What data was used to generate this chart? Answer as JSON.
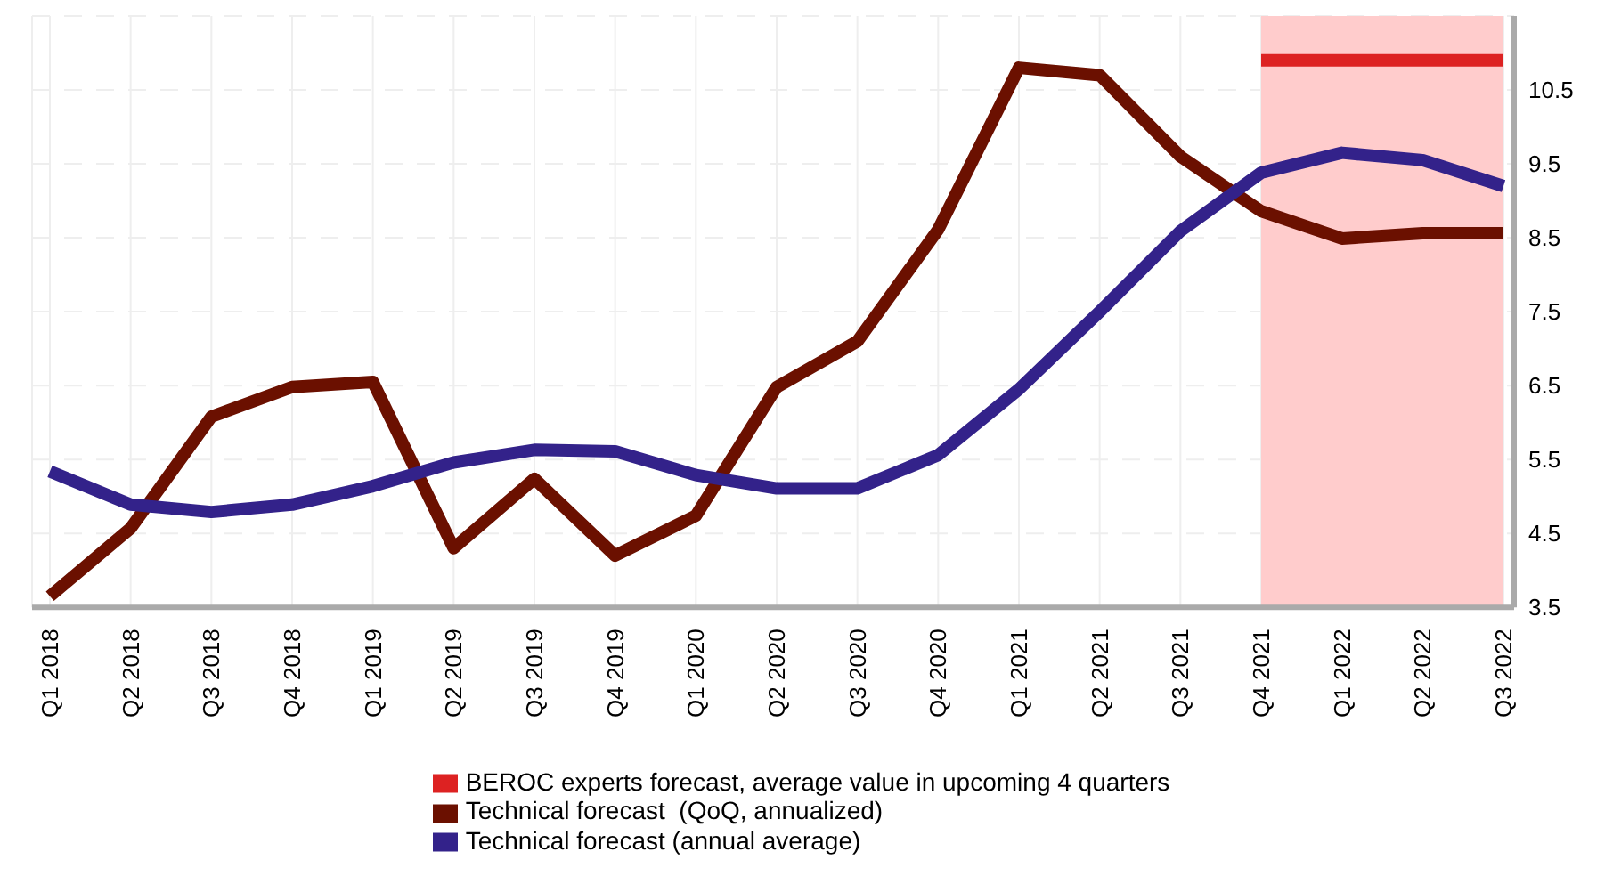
{
  "chart_data": {
    "type": "line",
    "categories": [
      "Q1 2018",
      "Q2 2018",
      "Q3 2018",
      "Q4 2018",
      "Q1 2019",
      "Q2 2019",
      "Q3 2019",
      "Q4 2019",
      "Q1 2020",
      "Q2 2020",
      "Q3 2020",
      "Q4 2020",
      "Q1 2021",
      "Q2 2021",
      "Q3 2021",
      "Q4 2021",
      "Q1 2022",
      "Q2 2022",
      "Q3 2022"
    ],
    "series": [
      {
        "name": "BEROC experts forecast, average value in upcoming 4 quarters",
        "color": "#dd2222",
        "values": [
          null,
          null,
          null,
          null,
          null,
          null,
          null,
          null,
          null,
          null,
          null,
          null,
          null,
          null,
          null,
          10.9,
          10.9,
          10.9,
          10.9
        ]
      },
      {
        "name": "Technical forecast  (QoQ, annualized)",
        "color": "#6b1000",
        "values": [
          3.65,
          4.57,
          6.08,
          6.48,
          6.55,
          4.3,
          5.24,
          4.2,
          4.74,
          6.48,
          7.1,
          8.61,
          10.8,
          10.7,
          9.6,
          8.86,
          8.49,
          8.56,
          8.56
        ]
      },
      {
        "name": "Technical forecast (annual average)",
        "color": "#33228a",
        "values": [
          5.34,
          4.89,
          4.79,
          4.89,
          5.14,
          5.46,
          5.63,
          5.61,
          5.29,
          5.11,
          5.11,
          5.56,
          6.45,
          7.5,
          8.59,
          9.38,
          9.65,
          9.55,
          9.2
        ]
      }
    ],
    "ylim": [
      3.5,
      11.5
    ],
    "yticks": [
      3.5,
      4.5,
      5.5,
      6.5,
      7.5,
      8.5,
      9.5,
      10.5
    ],
    "bands": [
      {
        "axis": "x",
        "from": "Q4 2021",
        "to": "Q3 2022",
        "color": "#ffcccc"
      }
    ],
    "grid": true,
    "legend": "bottom",
    "marker": "none",
    "line_style": "solid"
  }
}
